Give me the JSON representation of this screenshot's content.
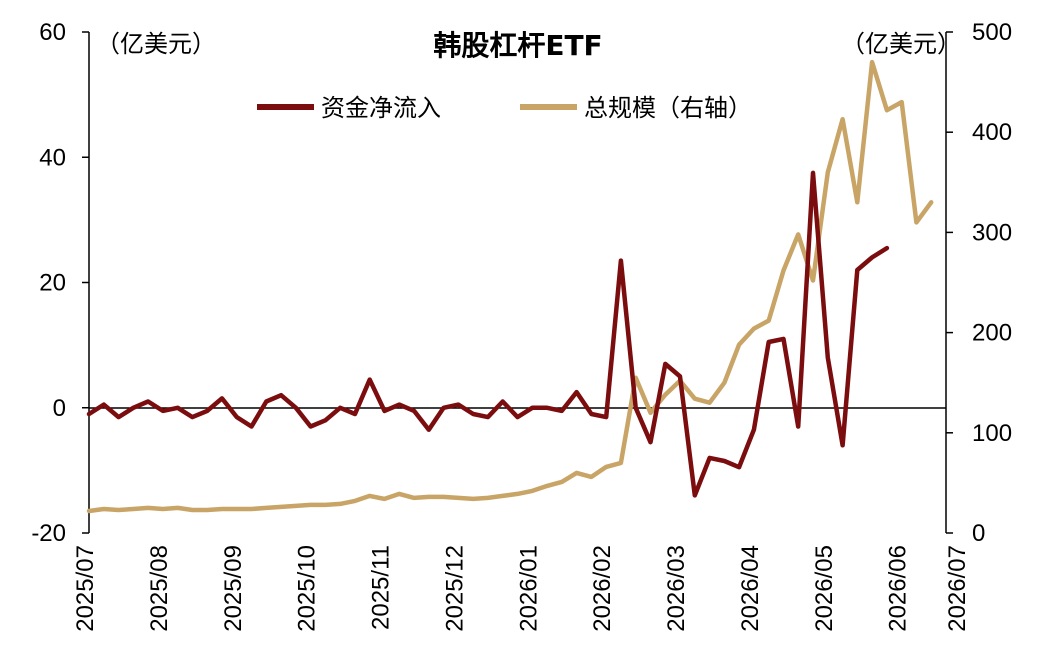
{
  "chart_data": {
    "type": "line",
    "title": "韩股杠杆ETF",
    "left_unit": "（亿美元）",
    "right_unit": "（亿美元）",
    "x_ticks": [
      "2025/07",
      "2025/08",
      "2025/09",
      "2025/10",
      "2025/11",
      "2025/12",
      "2026/01",
      "2026/02",
      "2026/03",
      "2026/04",
      "2026/05",
      "2026/06",
      "2026/07"
    ],
    "x_tick_positions": [
      0,
      5,
      10,
      15,
      20,
      25,
      30,
      35,
      40,
      45,
      50,
      55,
      59
    ],
    "y_left_ticks": [
      "60",
      "40",
      "20",
      "0",
      "-20"
    ],
    "y_left_lim": [
      -20,
      60
    ],
    "y_right_ticks": [
      "500",
      "400",
      "300",
      "200",
      "100",
      "0"
    ],
    "y_right_lim": [
      0,
      500
    ],
    "legend_position": "top-center",
    "grid": false,
    "series": [
      {
        "name": "资金净流入",
        "axis": "left",
        "color": "#7b0d0f",
        "values": [
          -1,
          0.5,
          -1.5,
          0,
          1,
          -0.5,
          0,
          -1.5,
          -0.5,
          1.5,
          -1.5,
          -3,
          1,
          2,
          0,
          -3,
          -2,
          0,
          -1,
          4.5,
          -0.5,
          0.5,
          -0.5,
          -3.5,
          0,
          0.5,
          -1,
          -1.5,
          1,
          -1.5,
          0,
          0,
          -0.5,
          2.5,
          -1,
          -1.5,
          23.5,
          0,
          -5.5,
          7,
          5,
          -14,
          -8,
          -8.5,
          -9.5,
          -3.5,
          10.5,
          11,
          -3,
          37.5,
          8,
          -6,
          22,
          24,
          25.5
        ]
      },
      {
        "name": "总规模（右轴）",
        "axis": "right",
        "color": "#c9a467",
        "values": [
          22,
          24,
          23,
          24,
          25,
          24,
          25,
          23,
          23,
          24,
          24,
          24,
          25,
          26,
          27,
          28,
          28,
          29,
          32,
          37,
          34,
          39,
          35,
          36,
          36,
          35,
          34,
          35,
          37,
          39,
          42,
          47,
          51,
          60,
          56,
          66,
          70,
          155,
          120,
          138,
          152,
          134,
          130,
          150,
          188,
          204,
          212,
          262,
          298,
          252,
          360,
          413,
          330,
          470,
          422,
          430,
          310,
          330
        ]
      }
    ]
  }
}
